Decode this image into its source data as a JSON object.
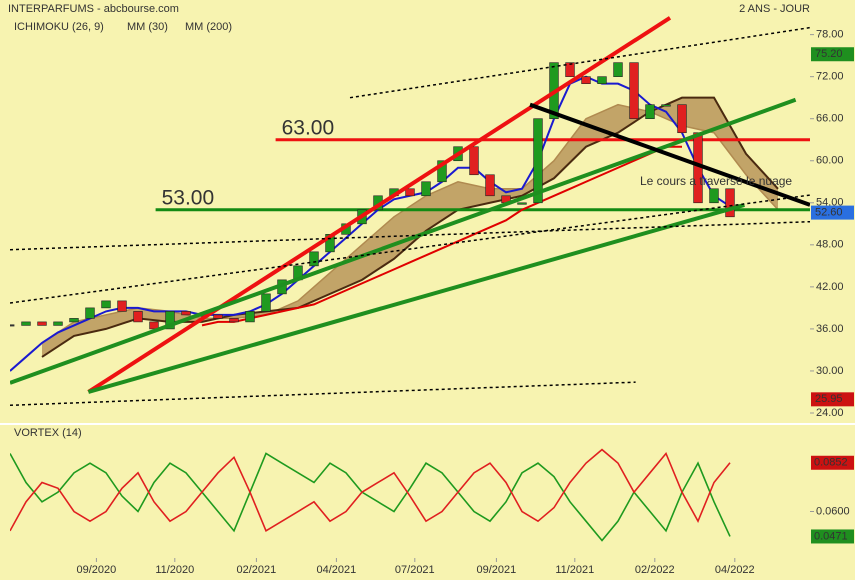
{
  "chart_data": {
    "type": "candlestick",
    "title": "INTERPARFUMS - abcbourse.com",
    "period": "2 ANS - JOUR",
    "annotation": "Le cours a traversé le nuage",
    "xlim": [
      0,
      50
    ],
    "xticks": [
      {
        "value": 5.4,
        "label": "09/2020"
      },
      {
        "value": 10.3,
        "label": "11/2020"
      },
      {
        "value": 15.4,
        "label": "02/2021"
      },
      {
        "value": 20.4,
        "label": "04/2021"
      },
      {
        "value": 25.3,
        "label": "07/2021"
      },
      {
        "value": 30.4,
        "label": "09/2021"
      },
      {
        "value": 35.3,
        "label": "11/2021"
      },
      {
        "value": 40.3,
        "label": "02/2022"
      },
      {
        "value": 45.3,
        "label": "04/2022"
      }
    ],
    "ylim": [
      23,
      81.8
    ],
    "yticks": [
      {
        "value": 78,
        "label": "78.00"
      },
      {
        "value": 72,
        "label": "72.00"
      },
      {
        "value": 66,
        "label": "66.00"
      },
      {
        "value": 60,
        "label": "60.00"
      },
      {
        "value": 54,
        "label": "54.00"
      },
      {
        "value": 48,
        "label": "48.00"
      },
      {
        "value": 42,
        "label": "42.00"
      },
      {
        "value": 36,
        "label": "36.00"
      },
      {
        "value": 30,
        "label": "30.00"
      },
      {
        "value": 24,
        "label": "24.00"
      }
    ],
    "x": [
      0,
      1,
      2,
      3,
      4,
      5,
      6,
      7,
      8,
      9,
      10,
      11,
      12,
      13,
      14,
      15,
      16,
      17,
      18,
      19,
      20,
      21,
      22,
      23,
      24,
      25,
      26,
      27,
      28,
      29,
      30,
      31,
      32,
      33,
      34,
      35,
      36,
      37,
      38,
      39,
      40,
      41,
      42,
      43,
      44,
      45
    ],
    "close": [
      36.5,
      37,
      36.5,
      37,
      37.5,
      39,
      40,
      38.5,
      37,
      36,
      38.5,
      38,
      38,
      37.5,
      37,
      38.5,
      41,
      43,
      45,
      47,
      49.5,
      51,
      53,
      55,
      56,
      55,
      57,
      60,
      62,
      58,
      55,
      54,
      54,
      66,
      74,
      72,
      71,
      72,
      74,
      66,
      68,
      68,
      64,
      54,
      56,
      52
    ],
    "up_color": "#1f9a1f",
    "down_color": "#e02020",
    "series": [
      {
        "name": "MM (30)",
        "color": "#1a1ad0",
        "values": [
          30,
          32,
          34,
          35.5,
          36.5,
          37.5,
          38.5,
          39,
          39,
          38.5,
          38.5,
          38.5,
          38,
          38,
          38,
          38.5,
          39.5,
          41,
          43,
          45,
          47,
          49,
          51,
          53,
          54.5,
          55,
          55.5,
          57,
          59,
          59,
          57,
          55.5,
          56,
          60,
          66,
          71,
          72,
          71,
          71,
          70,
          68,
          67,
          64,
          59,
          55,
          53.5
        ]
      },
      {
        "name": "MM (200)",
        "color": "#e00000",
        "values": [
          null,
          null,
          null,
          null,
          null,
          null,
          null,
          null,
          null,
          null,
          null,
          null,
          36.5,
          37,
          37,
          37.5,
          38,
          38.5,
          39,
          39.5,
          40.5,
          41.5,
          42.5,
          43.5,
          44.5,
          45.5,
          46.5,
          47.5,
          48.5,
          49.5,
          50.5,
          51.5,
          53,
          54,
          55,
          56,
          57,
          58,
          59,
          60,
          61,
          62,
          62,
          null,
          null,
          null
        ]
      }
    ],
    "cloud": {
      "name": "ICHIMOKU (26, 9)",
      "color": "#b08a50",
      "edge": "#4a2a10",
      "x": [
        2,
        4,
        6,
        8,
        10,
        12,
        14,
        16,
        18,
        20,
        22,
        24,
        26,
        28,
        30,
        32,
        34,
        36,
        38,
        40,
        42,
        44,
        46,
        48
      ],
      "span_a": [
        34,
        37,
        38,
        39,
        38.5,
        37.5,
        37.5,
        38,
        40,
        44,
        48,
        52,
        55,
        57,
        56,
        56,
        60,
        66,
        68,
        67,
        65,
        64,
        58,
        53
      ],
      "span_b": [
        32,
        35,
        36,
        37.5,
        37,
        37,
        38,
        38.5,
        39,
        41,
        43,
        46,
        50,
        53,
        54,
        55,
        57.5,
        62,
        64,
        67,
        69,
        69,
        61,
        56
      ]
    },
    "levels": [
      {
        "value": 63,
        "label": "63.00",
        "color": "#ee1111",
        "from": 16.6
      },
      {
        "value": 53,
        "label": "53.00",
        "color": "#138a13",
        "from": 9.1
      }
    ],
    "trendlines": [
      {
        "x": [
          4.9,
          41.25
        ],
        "y": [
          27,
          80.4
        ],
        "color": "#ee1111",
        "width": 4
      },
      {
        "x": [
          0,
          49.1
        ],
        "y": [
          28.3,
          68.7
        ],
        "color": "#1f8f1f",
        "width": 4
      },
      {
        "x": [
          4.9,
          45.9
        ],
        "y": [
          27,
          53.7
        ],
        "color": "#1f8f1f",
        "width": 4
      },
      {
        "x": [
          32.5,
          50
        ],
        "y": [
          68,
          53.7
        ],
        "color": "#000000",
        "width": 4
      },
      {
        "x": [
          21.25,
          50
        ],
        "y": [
          69,
          79
        ],
        "color": "#000000",
        "width": 1.5,
        "dash": true
      },
      {
        "x": [
          0,
          50
        ],
        "y": [
          39.7,
          55.1
        ],
        "color": "#000000",
        "width": 1.5,
        "dash": true
      },
      {
        "x": [
          0,
          50
        ],
        "y": [
          47.3,
          51.3
        ],
        "color": "#000000",
        "width": 1.5,
        "dash": true
      },
      {
        "x": [
          0,
          39.1
        ],
        "y": [
          25.1,
          28.4
        ],
        "color": "#000000",
        "width": 1.5,
        "dash": true
      }
    ],
    "price_markers": [
      {
        "value": 75.2,
        "label": "75.20",
        "color": "#1f8f1f"
      },
      {
        "value": 52.6,
        "label": "52.60",
        "color": "#2a6fe0"
      },
      {
        "value": 25.95,
        "label": "25.95",
        "color": "#cc1111"
      }
    ],
    "indicator": {
      "title": "VORTEX (14)",
      "y2lim": [
        0.037,
        0.098
      ],
      "y2ticks": [
        {
          "value": 0.06,
          "label": "0.0600"
        }
      ],
      "series": [
        {
          "color": "#1f9a1f",
          "values": [
            0.09,
            0.075,
            0.065,
            0.07,
            0.08,
            0.085,
            0.08,
            0.068,
            0.06,
            0.075,
            0.085,
            0.08,
            0.07,
            0.06,
            0.05,
            0.07,
            0.09,
            0.085,
            0.08,
            0.075,
            0.085,
            0.08,
            0.07,
            0.065,
            0.06,
            0.072,
            0.085,
            0.08,
            0.07,
            0.06,
            0.055,
            0.065,
            0.08,
            0.085,
            0.078,
            0.065,
            0.055,
            0.045,
            0.055,
            0.07,
            0.06,
            0.05,
            0.07,
            0.085,
            0.065,
            0.0471
          ]
        },
        {
          "color": "#e02020",
          "values": [
            0.05,
            0.065,
            0.075,
            0.072,
            0.06,
            0.055,
            0.06,
            0.072,
            0.08,
            0.065,
            0.055,
            0.06,
            0.07,
            0.08,
            0.088,
            0.07,
            0.05,
            0.055,
            0.06,
            0.065,
            0.055,
            0.06,
            0.07,
            0.075,
            0.08,
            0.068,
            0.055,
            0.06,
            0.07,
            0.08,
            0.085,
            0.075,
            0.06,
            0.055,
            0.062,
            0.075,
            0.085,
            0.092,
            0.085,
            0.07,
            0.08,
            0.09,
            0.07,
            0.055,
            0.075,
            0.0852
          ]
        }
      ],
      "markers": [
        {
          "value": 0.0852,
          "label": "0.0852",
          "color": "#cc1111"
        },
        {
          "value": 0.0471,
          "label": "0.0471",
          "color": "#1f8f1f"
        }
      ]
    }
  }
}
